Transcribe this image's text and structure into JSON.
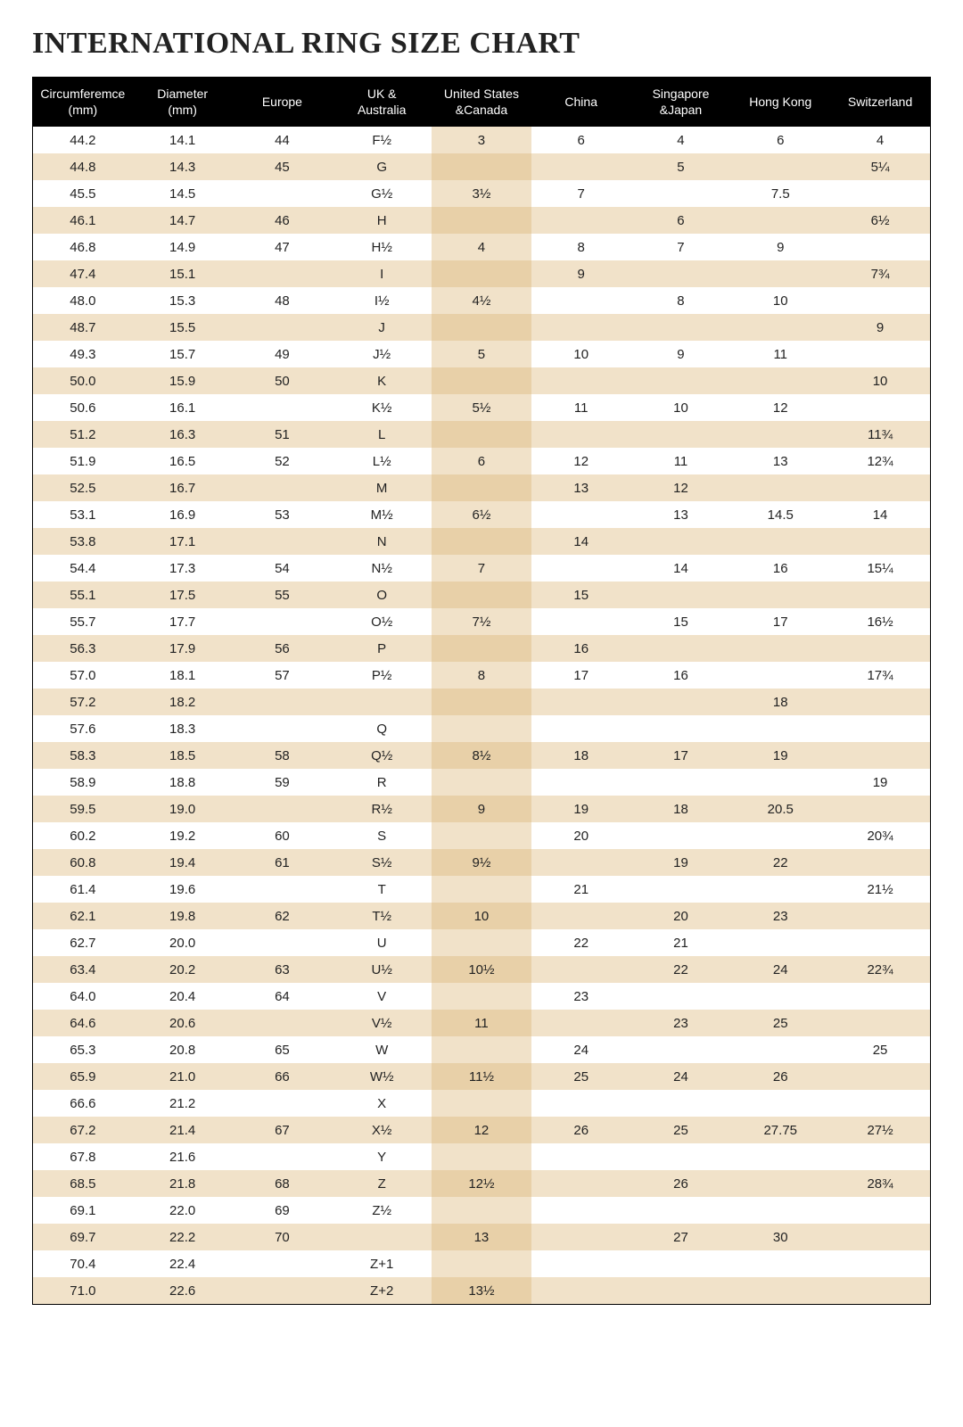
{
  "title": "INTERNATIONAL RING SIZE CHART",
  "table": {
    "type": "table",
    "background_color": "#ffffff",
    "header_bg": "#000000",
    "header_color": "#ffffff",
    "stripe_colors": {
      "a": "#ffffff",
      "b": "#f1e2c9"
    },
    "highlight_column_index": 4,
    "highlight_colors": {
      "a": "#f1e2c9",
      "b": "#e8d0a8"
    },
    "border_color": "#000000",
    "font_size_header": 14,
    "font_size_body": 15,
    "columns": [
      "Circumferemce\n(mm)",
      "Diameter\n(mm)",
      "Europe",
      "UK &\nAustralia",
      "United States\n&Canada",
      "China",
      "Singapore\n&Japan",
      "Hong Kong",
      "Switzerland"
    ],
    "rows": [
      [
        "44.2",
        "14.1",
        "44",
        "F½",
        "3",
        "6",
        "4",
        "6",
        "4"
      ],
      [
        "44.8",
        "14.3",
        "45",
        "G",
        "",
        "",
        "5",
        "",
        "5¼"
      ],
      [
        "45.5",
        "14.5",
        "",
        "G½",
        "3½",
        "7",
        "",
        "7.5",
        ""
      ],
      [
        "46.1",
        "14.7",
        "46",
        "H",
        "",
        "",
        "6",
        "",
        "6½"
      ],
      [
        "46.8",
        "14.9",
        "47",
        "H½",
        "4",
        "8",
        "7",
        "9",
        ""
      ],
      [
        "47.4",
        "15.1",
        "",
        "I",
        "",
        "9",
        "",
        "",
        "7¾"
      ],
      [
        "48.0",
        "15.3",
        "48",
        "I½",
        "4½",
        "",
        "8",
        "10",
        ""
      ],
      [
        "48.7",
        "15.5",
        "",
        "J",
        "",
        "",
        "",
        "",
        "9"
      ],
      [
        "49.3",
        "15.7",
        "49",
        "J½",
        "5",
        "10",
        "9",
        "11",
        ""
      ],
      [
        "50.0",
        "15.9",
        "50",
        "K",
        "",
        "",
        "",
        "",
        "10"
      ],
      [
        "50.6",
        "16.1",
        "",
        "K½",
        "5½",
        "11",
        "10",
        "12",
        ""
      ],
      [
        "51.2",
        "16.3",
        "51",
        "L",
        "",
        "",
        "",
        "",
        "11¾"
      ],
      [
        "51.9",
        "16.5",
        "52",
        "L½",
        "6",
        "12",
        "11",
        "13",
        "12¾"
      ],
      [
        "52.5",
        "16.7",
        "",
        "M",
        "",
        "13",
        "12",
        "",
        ""
      ],
      [
        "53.1",
        "16.9",
        "53",
        "M½",
        "6½",
        "",
        "13",
        "14.5",
        "14"
      ],
      [
        "53.8",
        "17.1",
        "",
        "N",
        "",
        "14",
        "",
        "",
        ""
      ],
      [
        "54.4",
        "17.3",
        "54",
        "N½",
        "7",
        "",
        "14",
        "16",
        "15¼"
      ],
      [
        "55.1",
        "17.5",
        "55",
        "O",
        "",
        "15",
        "",
        "",
        ""
      ],
      [
        "55.7",
        "17.7",
        "",
        "O½",
        "7½",
        "",
        "15",
        "17",
        "16½"
      ],
      [
        "56.3",
        "17.9",
        "56",
        "P",
        "",
        "16",
        "",
        "",
        ""
      ],
      [
        "57.0",
        "18.1",
        "57",
        "P½",
        "8",
        "17",
        "16",
        "",
        "17¾"
      ],
      [
        "57.2",
        "18.2",
        "",
        "",
        "",
        "",
        "",
        "18",
        ""
      ],
      [
        "57.6",
        "18.3",
        "",
        "Q",
        "",
        "",
        "",
        "",
        ""
      ],
      [
        "58.3",
        "18.5",
        "58",
        "Q½",
        "8½",
        "18",
        "17",
        "19",
        ""
      ],
      [
        "58.9",
        "18.8",
        "59",
        "R",
        "",
        "",
        "",
        "",
        "19"
      ],
      [
        "59.5",
        "19.0",
        "",
        "R½",
        "9",
        "19",
        "18",
        "20.5",
        ""
      ],
      [
        "60.2",
        "19.2",
        "60",
        "S",
        "",
        "20",
        "",
        "",
        "20¾"
      ],
      [
        "60.8",
        "19.4",
        "61",
        "S½",
        "9½",
        "",
        "19",
        "22",
        ""
      ],
      [
        "61.4",
        "19.6",
        "",
        "T",
        "",
        "21",
        "",
        "",
        "21½"
      ],
      [
        "62.1",
        "19.8",
        "62",
        "T½",
        "10",
        "",
        "20",
        "23",
        ""
      ],
      [
        "62.7",
        "20.0",
        "",
        "U",
        "",
        "22",
        "21",
        "",
        ""
      ],
      [
        "63.4",
        "20.2",
        "63",
        "U½",
        "10½",
        "",
        "22",
        "24",
        "22¾"
      ],
      [
        "64.0",
        "20.4",
        "64",
        "V",
        "",
        "23",
        "",
        "",
        ""
      ],
      [
        "64.6",
        "20.6",
        "",
        "V½",
        "11",
        "",
        "23",
        "25",
        ""
      ],
      [
        "65.3",
        "20.8",
        "65",
        "W",
        "",
        "24",
        "",
        "",
        "25"
      ],
      [
        "65.9",
        "21.0",
        "66",
        "W½",
        "11½",
        "25",
        "24",
        "26",
        ""
      ],
      [
        "66.6",
        "21.2",
        "",
        "X",
        "",
        "",
        "",
        "",
        ""
      ],
      [
        "67.2",
        "21.4",
        "67",
        "X½",
        "12",
        "26",
        "25",
        "27.75",
        "27½"
      ],
      [
        "67.8",
        "21.6",
        "",
        "Y",
        "",
        "",
        "",
        "",
        ""
      ],
      [
        "68.5",
        "21.8",
        "68",
        "Z",
        "12½",
        "",
        "26",
        "",
        "28¾"
      ],
      [
        "69.1",
        "22.0",
        "69",
        "Z½",
        "",
        "",
        "",
        "",
        ""
      ],
      [
        "69.7",
        "22.2",
        "70",
        "",
        "13",
        "",
        "27",
        "30",
        ""
      ],
      [
        "70.4",
        "22.4",
        "",
        "Z+1",
        "",
        "",
        "",
        "",
        ""
      ],
      [
        "71.0",
        "22.6",
        "",
        "Z+2",
        "13½",
        "",
        "",
        "",
        ""
      ]
    ]
  }
}
